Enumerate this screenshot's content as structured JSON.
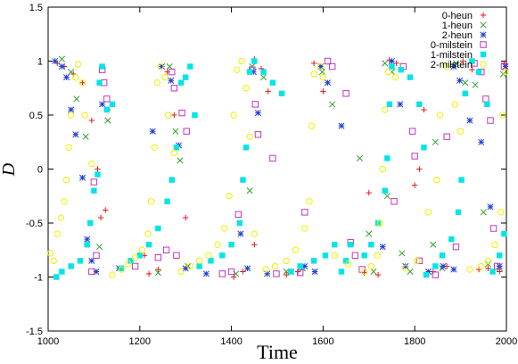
{
  "chart_data": {
    "type": "scatter",
    "title": "",
    "xlabel": "Time",
    "ylabel": "D",
    "xlim": [
      1000,
      2000
    ],
    "ylim": [
      -1.5,
      1.5
    ],
    "xticks": [
      1000,
      1200,
      1400,
      1600,
      1800,
      2000
    ],
    "xtick_labels": [
      "1000",
      "1200",
      "1400",
      "1600",
      "1800",
      "2000"
    ],
    "yticks": [
      -1.5,
      -1,
      -0.5,
      0,
      0.5,
      1,
      1.5
    ],
    "ytick_labels": [
      "-1.5",
      "-1",
      "-0.5",
      "0",
      "0.5",
      "1",
      "1.5"
    ],
    "grid": false,
    "legend_position": "top-right",
    "series": [
      {
        "name": "0-heun",
        "marker": "plus",
        "color": "#e31a1c",
        "points": [
          [
            1020,
            0.98
          ],
          [
            1035,
            0.95
          ],
          [
            1055,
            0.88
          ],
          [
            1075,
            0.8
          ],
          [
            1095,
            0.45
          ],
          [
            1108,
            0.0
          ],
          [
            1115,
            -0.45
          ],
          [
            1125,
            -0.38
          ],
          [
            1130,
            0.55
          ],
          [
            1220,
            -0.97
          ],
          [
            1240,
            -0.93
          ],
          [
            1260,
            0.9
          ],
          [
            1275,
            0.5
          ],
          [
            1300,
            -0.45
          ],
          [
            1405,
            -1.0
          ],
          [
            1425,
            -0.95
          ],
          [
            1450,
            1.02
          ],
          [
            1465,
            0.93
          ],
          [
            1480,
            0.72
          ],
          [
            1520,
            -0.98
          ],
          [
            1545,
            -0.95
          ],
          [
            1580,
            0.98
          ],
          [
            1600,
            0.72
          ],
          [
            1700,
            -0.22
          ],
          [
            1720,
            -0.98
          ],
          [
            1745,
            1.01
          ],
          [
            1760,
            0.98
          ],
          [
            1800,
            -0.15
          ],
          [
            1810,
            0.0
          ],
          [
            1820,
            0.55
          ],
          [
            1840,
            -0.95
          ],
          [
            1870,
            -0.9
          ],
          [
            1905,
            1.0
          ],
          [
            1925,
            0.92
          ],
          [
            1960,
            -0.92
          ],
          [
            1985,
            -0.95
          ],
          [
            1995,
            0.98
          ],
          [
            1210,
            -0.8
          ],
          [
            1450,
            -0.7
          ],
          [
            1690,
            -0.96
          ],
          [
            1940,
            -0.93
          ]
        ]
      },
      {
        "name": "1-heun",
        "marker": "cross",
        "color": "#33a02c",
        "points": [
          [
            1030,
            1.02
          ],
          [
            1050,
            0.9
          ],
          [
            1062,
            0.65
          ],
          [
            1082,
            0.3
          ],
          [
            1112,
            -0.72
          ],
          [
            1130,
            0.45
          ],
          [
            1240,
            -0.96
          ],
          [
            1265,
            0.95
          ],
          [
            1278,
            0.35
          ],
          [
            1288,
            0.08
          ],
          [
            1305,
            -0.9
          ],
          [
            1410,
            -0.97
          ],
          [
            1440,
            -0.2
          ],
          [
            1445,
            0.95
          ],
          [
            1470,
            0.85
          ],
          [
            1520,
            -0.95
          ],
          [
            1555,
            -0.92
          ],
          [
            1598,
            0.9
          ],
          [
            1620,
            0.6
          ],
          [
            1680,
            0.1
          ],
          [
            1700,
            -0.6
          ],
          [
            1710,
            -0.95
          ],
          [
            1735,
            0.98
          ],
          [
            1750,
            0.9
          ],
          [
            1772,
            -0.78
          ],
          [
            1790,
            -0.95
          ],
          [
            1840,
            -0.7
          ],
          [
            1860,
            -0.92
          ],
          [
            1890,
            0.98
          ],
          [
            1910,
            0.8
          ],
          [
            1932,
            0.78
          ],
          [
            1950,
            -0.4
          ],
          [
            1960,
            -0.88
          ],
          [
            1985,
            -0.92
          ],
          [
            1993,
            0.88
          ],
          [
            1740,
            -0.25
          ],
          [
            1845,
            0.25
          ]
        ]
      },
      {
        "name": "2-heun",
        "marker": "star",
        "color": "#1f3fd4",
        "points": [
          [
            1015,
            1.0
          ],
          [
            1030,
            0.95
          ],
          [
            1040,
            0.85
          ],
          [
            1050,
            0.55
          ],
          [
            1060,
            0.32
          ],
          [
            1075,
            -0.08
          ],
          [
            1085,
            -0.65
          ],
          [
            1095,
            -0.85
          ],
          [
            1105,
            -0.95
          ],
          [
            1118,
            0.6
          ],
          [
            1228,
            0.35
          ],
          [
            1248,
            0.95
          ],
          [
            1268,
            0.82
          ],
          [
            1285,
            0.22
          ],
          [
            1300,
            -0.92
          ],
          [
            1420,
            -0.6
          ],
          [
            1435,
            -0.92
          ],
          [
            1448,
            0.9
          ],
          [
            1458,
            0.52
          ],
          [
            1478,
            -0.97
          ],
          [
            1530,
            -0.95
          ],
          [
            1560,
            -0.9
          ],
          [
            1595,
            0.95
          ],
          [
            1610,
            0.8
          ],
          [
            1640,
            0.4
          ],
          [
            1730,
            -0.72
          ],
          [
            1750,
            1.0
          ],
          [
            1768,
            0.6
          ],
          [
            1780,
            -0.9
          ],
          [
            1830,
            -0.95
          ],
          [
            1862,
            -0.9
          ],
          [
            1885,
            0.95
          ],
          [
            1898,
            0.82
          ],
          [
            1920,
            0.45
          ],
          [
            1945,
            0.25
          ],
          [
            1965,
            -0.35
          ],
          [
            1985,
            -0.9
          ],
          [
            1998,
            0.95
          ],
          [
            1155,
            -0.92
          ],
          [
            1345,
            -0.97
          ],
          [
            1582,
            -0.95
          ],
          [
            1885,
            -0.93
          ]
        ]
      },
      {
        "name": "0-milstein",
        "marker": "box",
        "color": "#c036c0",
        "points": [
          [
            1095,
            -0.95
          ],
          [
            1100,
            -0.12
          ],
          [
            1105,
            -0.8
          ],
          [
            1118,
            0.92
          ],
          [
            1122,
            0.8
          ],
          [
            1128,
            0.65
          ],
          [
            1190,
            -0.9
          ],
          [
            1240,
            -0.82
          ],
          [
            1258,
            -0.75
          ],
          [
            1270,
            0.9
          ],
          [
            1275,
            0.75
          ],
          [
            1280,
            -0.8
          ],
          [
            1292,
            0.52
          ],
          [
            1302,
            0.35
          ],
          [
            1380,
            -0.97
          ],
          [
            1400,
            -0.95
          ],
          [
            1415,
            -0.42
          ],
          [
            1445,
            0.92
          ],
          [
            1452,
            0.6
          ],
          [
            1458,
            0.32
          ],
          [
            1498,
            -0.97
          ],
          [
            1550,
            -0.96
          ],
          [
            1610,
            1.0
          ],
          [
            1620,
            0.95
          ],
          [
            1650,
            0.7
          ],
          [
            1660,
            -0.68
          ],
          [
            1670,
            -0.8
          ],
          [
            1685,
            -0.93
          ],
          [
            1775,
            0.95
          ],
          [
            1795,
            0.35
          ],
          [
            1800,
            0.12
          ],
          [
            1810,
            -0.85
          ],
          [
            1845,
            -0.98
          ],
          [
            1870,
            0.3
          ],
          [
            1890,
            -0.72
          ],
          [
            1930,
            0.98
          ],
          [
            1945,
            0.9
          ],
          [
            1955,
            0.65
          ],
          [
            1965,
            0.45
          ],
          [
            1972,
            -0.55
          ],
          [
            1980,
            -0.9
          ],
          [
            1995,
            0.95
          ],
          [
            1490,
            0.1
          ],
          [
            1560,
            -0.4
          ],
          [
            1755,
            -0.3
          ]
        ]
      },
      {
        "name": "1-milstein",
        "marker": "filled-box",
        "color": "#00e5e5",
        "points": [
          [
            1018,
            -1.0
          ],
          [
            1030,
            -0.95
          ],
          [
            1050,
            -0.9
          ],
          [
            1070,
            -0.85
          ],
          [
            1085,
            -0.7
          ],
          [
            1092,
            -0.5
          ],
          [
            1100,
            -0.2
          ],
          [
            1108,
            -0.05
          ],
          [
            1112,
            0.8
          ],
          [
            1118,
            0.95
          ],
          [
            1128,
            0.55
          ],
          [
            1140,
            0.6
          ],
          [
            1160,
            -0.92
          ],
          [
            1180,
            -0.85
          ],
          [
            1200,
            -0.8
          ],
          [
            1220,
            -0.7
          ],
          [
            1240,
            -0.55
          ],
          [
            1260,
            -0.3
          ],
          [
            1270,
            -0.1
          ],
          [
            1280,
            0.2
          ],
          [
            1290,
            0.8
          ],
          [
            1300,
            0.85
          ],
          [
            1310,
            0.95
          ],
          [
            1320,
            0.5
          ],
          [
            1330,
            -0.9
          ],
          [
            1355,
            -0.85
          ],
          [
            1380,
            -0.8
          ],
          [
            1400,
            -0.7
          ],
          [
            1418,
            -0.5
          ],
          [
            1425,
            -0.1
          ],
          [
            1432,
            0.2
          ],
          [
            1440,
            0.9
          ],
          [
            1450,
            1.0
          ],
          [
            1470,
            0.9
          ],
          [
            1490,
            0.8
          ],
          [
            1510,
            0.7
          ],
          [
            1530,
            -0.95
          ],
          [
            1550,
            -0.9
          ],
          [
            1580,
            -0.85
          ],
          [
            1605,
            -0.8
          ],
          [
            1625,
            -0.7
          ],
          [
            1640,
            -0.95
          ],
          [
            1650,
            -0.85
          ],
          [
            1660,
            -0.7
          ],
          [
            1690,
            -0.8
          ],
          [
            1705,
            -0.7
          ],
          [
            1720,
            -0.5
          ],
          [
            1735,
            -0.2
          ],
          [
            1740,
            0.1
          ],
          [
            1745,
            0.6
          ],
          [
            1750,
            0.95
          ],
          [
            1770,
            0.92
          ],
          [
            1790,
            0.85
          ],
          [
            1810,
            0.6
          ],
          [
            1820,
            0.2
          ],
          [
            1825,
            -0.98
          ],
          [
            1845,
            -0.9
          ],
          [
            1860,
            -0.8
          ],
          [
            1880,
            -0.65
          ],
          [
            1895,
            -0.4
          ],
          [
            1902,
            -0.1
          ],
          [
            1910,
            0.7
          ],
          [
            1925,
            1.0
          ],
          [
            1940,
            0.9
          ],
          [
            1958,
            0.6
          ],
          [
            1970,
            -0.95
          ],
          [
            1985,
            -0.8
          ],
          [
            1995,
            -0.6
          ]
        ]
      },
      {
        "name": "2-milstein",
        "marker": "circle",
        "color": "#f0f000",
        "points": [
          [
            1005,
            -0.78
          ],
          [
            1012,
            -0.85
          ],
          [
            1020,
            -0.6
          ],
          [
            1028,
            -0.45
          ],
          [
            1035,
            -0.3
          ],
          [
            1040,
            -0.1
          ],
          [
            1045,
            0.2
          ],
          [
            1050,
            0.5
          ],
          [
            1060,
            0.85
          ],
          [
            1065,
            0.97
          ],
          [
            1075,
            0.8
          ],
          [
            1080,
            0.5
          ],
          [
            1095,
            0.05
          ],
          [
            1140,
            -0.98
          ],
          [
            1160,
            -0.93
          ],
          [
            1175,
            -0.88
          ],
          [
            1190,
            -0.82
          ],
          [
            1205,
            -0.75
          ],
          [
            1218,
            -0.6
          ],
          [
            1225,
            -0.3
          ],
          [
            1232,
            0.2
          ],
          [
            1238,
            0.8
          ],
          [
            1245,
            0.95
          ],
          [
            1255,
            0.85
          ],
          [
            1262,
            0.5
          ],
          [
            1275,
            0.15
          ],
          [
            1290,
            -0.95
          ],
          [
            1310,
            -0.9
          ],
          [
            1330,
            -0.85
          ],
          [
            1350,
            -0.8
          ],
          [
            1370,
            -0.7
          ],
          [
            1385,
            -0.55
          ],
          [
            1395,
            -0.25
          ],
          [
            1405,
            0.5
          ],
          [
            1412,
            0.92
          ],
          [
            1422,
            1.0
          ],
          [
            1432,
            0.75
          ],
          [
            1440,
            0.3
          ],
          [
            1450,
            -0.6
          ],
          [
            1475,
            -0.93
          ],
          [
            1495,
            -0.9
          ],
          [
            1520,
            -0.85
          ],
          [
            1540,
            -0.75
          ],
          [
            1560,
            -0.55
          ],
          [
            1570,
            -0.3
          ],
          [
            1575,
            0.4
          ],
          [
            1580,
            0.88
          ],
          [
            1595,
            0.95
          ],
          [
            1600,
            0.85
          ],
          [
            1625,
            -0.8
          ],
          [
            1655,
            -0.88
          ],
          [
            1690,
            -0.95
          ],
          [
            1705,
            -0.9
          ],
          [
            1718,
            -0.8
          ],
          [
            1725,
            -0.5
          ],
          [
            1730,
            0.0
          ],
          [
            1735,
            0.55
          ],
          [
            1742,
            0.9
          ],
          [
            1758,
            0.85
          ],
          [
            1780,
            -0.92
          ],
          [
            1805,
            -0.85
          ],
          [
            1830,
            -0.4
          ],
          [
            1848,
            -0.1
          ],
          [
            1855,
            0.5
          ],
          [
            1870,
            0.95
          ],
          [
            1888,
            0.6
          ],
          [
            1900,
            0.35
          ],
          [
            1920,
            -0.93
          ],
          [
            1945,
            -0.9
          ],
          [
            1960,
            -0.85
          ],
          [
            1975,
            -0.7
          ],
          [
            1988,
            -0.4
          ],
          [
            1992,
            0.5
          ],
          [
            1998,
            0.9
          ]
        ]
      }
    ]
  }
}
